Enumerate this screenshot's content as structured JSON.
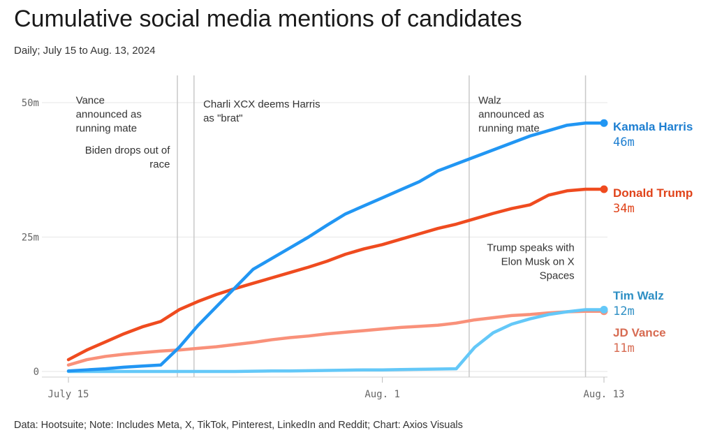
{
  "title": "Cumulative social media mentions of candidates",
  "subtitle": "Daily; July 15 to Aug. 13, 2024",
  "footer": "Data: Hootsuite; Note: Includes Meta, X, TikTok, Pinterest, LinkedIn and Reddit; Chart: Axios Visuals",
  "colors": {
    "harris": "#2196f3",
    "trump": "#ef4b1f",
    "walz": "#64c8f8",
    "vance": "#f9917a",
    "harris_label": "#1e7fd1",
    "trump_label": "#e0431a",
    "walz_label": "#2e8fc4",
    "vance_label": "#d76b52"
  },
  "chart_data": {
    "type": "line",
    "title": "Cumulative social media mentions of candidates",
    "subtitle": "Daily; July 15 to Aug. 13, 2024",
    "x_start": "July 15",
    "x_ticks": [
      {
        "day": 0,
        "label": "July 15"
      },
      {
        "day": 17,
        "label": "Aug. 1"
      },
      {
        "day": 29,
        "label": "Aug. 13"
      }
    ],
    "y_ticks": [
      {
        "value": 0,
        "label": "0"
      },
      {
        "value": 25,
        "label": "25m"
      },
      {
        "value": 50,
        "label": "50m"
      }
    ],
    "y_unit": "millions",
    "ylim": [
      0,
      50
    ],
    "grid": true,
    "x": [
      0,
      1,
      2,
      3,
      4,
      5,
      6,
      7,
      8,
      9,
      10,
      11,
      12,
      13,
      14,
      15,
      16,
      17,
      18,
      19,
      20,
      21,
      22,
      23,
      24,
      25,
      26,
      27,
      28,
      29
    ],
    "series": [
      {
        "name": "Kamala Harris",
        "key": "harris",
        "end_label": "46m",
        "values": [
          0.1,
          0.3,
          0.5,
          0.8,
          1.0,
          1.2,
          4.5,
          8.5,
          12,
          15.5,
          19,
          21,
          23,
          25,
          27.2,
          29.3,
          30.8,
          32.3,
          33.8,
          35.3,
          37.3,
          38.6,
          39.9,
          41.2,
          42.5,
          43.8,
          44.8,
          45.8,
          46.2,
          46.2
        ]
      },
      {
        "name": "Donald Trump",
        "key": "trump",
        "end_label": "34m",
        "values": [
          2.2,
          4,
          5.5,
          7,
          8.3,
          9.3,
          11.5,
          13,
          14.3,
          15.4,
          16.4,
          17.4,
          18.4,
          19.4,
          20.5,
          21.8,
          22.8,
          23.6,
          24.6,
          25.6,
          26.6,
          27.4,
          28.4,
          29.4,
          30.3,
          31,
          32.8,
          33.6,
          33.9,
          33.9
        ]
      },
      {
        "name": "Tim Walz",
        "key": "walz",
        "end_label": "12m",
        "values": [
          0,
          0,
          0,
          0,
          0,
          0,
          0,
          0,
          0,
          0,
          0.05,
          0.1,
          0.1,
          0.15,
          0.2,
          0.25,
          0.3,
          0.3,
          0.35,
          0.4,
          0.45,
          0.5,
          4.5,
          7.2,
          8.8,
          9.8,
          10.6,
          11.1,
          11.5,
          11.5
        ]
      },
      {
        "name": "JD Vance",
        "key": "vance",
        "end_label": "11m",
        "values": [
          1.2,
          2.2,
          2.8,
          3.2,
          3.5,
          3.8,
          4.0,
          4.3,
          4.6,
          5.0,
          5.4,
          5.9,
          6.3,
          6.6,
          7.0,
          7.3,
          7.6,
          7.9,
          8.2,
          8.4,
          8.6,
          9.0,
          9.6,
          10.0,
          10.4,
          10.6,
          10.9,
          11.1,
          11.2,
          11.2
        ]
      }
    ],
    "events": [
      {
        "day": 5.9,
        "lines": [
          "Vance",
          "announced as",
          "running mate"
        ],
        "anchor": "start",
        "label_day": 0.4,
        "top_value": 49.8
      },
      {
        "day": 5.9,
        "lines": [
          "Biden drops out of",
          "race"
        ],
        "anchor": "end",
        "label_day": 5.5,
        "top_value": 40.5
      },
      {
        "day": 6.8,
        "lines": [
          "Charli XCX deems Harris",
          "as \"brat\""
        ],
        "anchor": "start",
        "label_day": 7.3,
        "top_value": 49.1
      },
      {
        "day": 21.7,
        "lines": [
          "Walz",
          "announced as",
          "running mate"
        ],
        "anchor": "start",
        "label_day": 22.2,
        "top_value": 49.8
      },
      {
        "day": 28.0,
        "lines": [
          "Trump speaks with",
          "Elon Musk on X",
          "Spaces"
        ],
        "anchor": "end",
        "label_day": 27.4,
        "top_value": 22.4
      }
    ]
  }
}
